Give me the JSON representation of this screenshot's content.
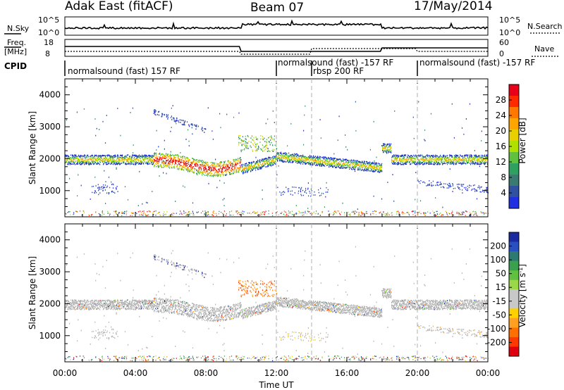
{
  "header": {
    "left": "Adak East (fitACF)",
    "center": "Beam 07",
    "right": "17/May/2014"
  },
  "top_strip": {
    "nsky_label": "N.Sky",
    "nsky_ticks": [
      "10^5",
      "10^0"
    ],
    "nsearch_label": "N.Search",
    "nsearch_ticks": [
      "10^5",
      "10^0"
    ],
    "freq_label": "Freq.",
    "freq_unit": "[MHz]",
    "freq_ticks": [
      "18",
      "8"
    ],
    "nave_label": "Nave",
    "nave_ticks": [
      "60",
      "0"
    ],
    "cpid_label": "CPID",
    "cpid_segments": [
      {
        "label": "normalsound (fast) 157 RF",
        "start": 0,
        "end": 12
      },
      {
        "label": "normalsound (fast) -157 RF",
        "start": 12,
        "end": 20
      },
      {
        "label": "rbsp 200 RF",
        "start": 14,
        "end": 18
      },
      {
        "label": "normalsound (fast) -157 RF",
        "start": 20,
        "end": 24
      }
    ]
  },
  "colors": {
    "background": "#ffffff",
    "axis": "#000000",
    "ground_scatter": "#b4b4b4",
    "dashed_marker": "#b0b0b0"
  },
  "chart_data": [
    {
      "type": "heatmap",
      "name": "power-panel",
      "ylabel": "Slant Range [km]",
      "xlabel": "",
      "xlim": [
        0,
        24
      ],
      "ylim": [
        180,
        4500
      ],
      "yticks": [
        1000,
        2000,
        3000,
        4000
      ],
      "xticks_hours": [
        0,
        4,
        8,
        12,
        16,
        20,
        24
      ],
      "colorbar": {
        "label": "Power [dB]",
        "ticks": [
          "28",
          "24",
          "20",
          "16",
          "12",
          "8",
          "4"
        ],
        "colors": [
          "#e8001a",
          "#ff2a00",
          "#ff7800",
          "#ffa500",
          "#e8d000",
          "#b0e000",
          "#60c040",
          "#2ea060",
          "#3a7a70",
          "#3050a0",
          "#2030e0"
        ]
      },
      "features": [
        {
          "desc": "main echo band",
          "t_start": 0,
          "t_end": 24,
          "range_km": [
            1700,
            2100
          ]
        },
        {
          "desc": "upper band",
          "t_start": 5,
          "t_end": 8,
          "range_km": [
            2800,
            3500
          ]
        },
        {
          "desc": "lower band",
          "t_start": 20,
          "t_end": 24,
          "range_km": [
            900,
            1300
          ]
        }
      ]
    },
    {
      "type": "heatmap",
      "name": "velocity-panel",
      "ylabel": "Slant Range [km]",
      "xlabel": "Time UT",
      "xlim": [
        0,
        24
      ],
      "ylim": [
        180,
        4500
      ],
      "yticks": [
        1000,
        2000,
        3000,
        4000
      ],
      "xticks": [
        "00:00",
        "04:00",
        "08:00",
        "12:00",
        "16:00",
        "20:00",
        "00:00"
      ],
      "colorbar": {
        "label": "Velocity [m s^-1]",
        "ticks": [
          "200",
          "100",
          "50",
          "15",
          "-15",
          "-50",
          "-100",
          "-200"
        ],
        "colors": [
          "#1a2aa0",
          "#2a50c0",
          "#2e7a70",
          "#3aa050",
          "#60c040",
          "#9ad84a",
          "#c8c8c8",
          "#c8c8c8",
          "#ffd000",
          "#ffa020",
          "#ff7000",
          "#ff3a00",
          "#e00010"
        ]
      }
    }
  ]
}
